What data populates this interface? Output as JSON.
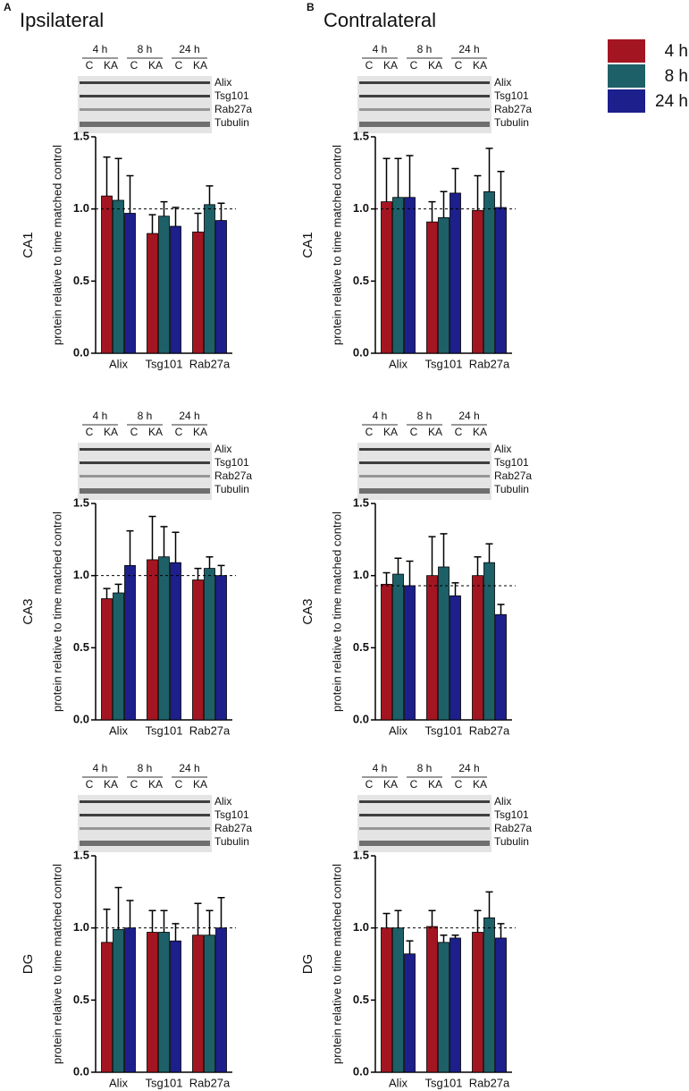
{
  "panels": [
    {
      "label": "A",
      "title": "Ipsilateral"
    },
    {
      "label": "B",
      "title": "Contralateral"
    }
  ],
  "legend": [
    {
      "name": "4 h",
      "color": "#a31621"
    },
    {
      "name": "8 h",
      "color": "#1d6068"
    },
    {
      "name": "24 h",
      "color": "#1c1f8c"
    }
  ],
  "chart_data": [
    {
      "type": "bar",
      "region": "CA1",
      "ylabel": "protein relative to time matched control",
      "categories": [
        "Alix",
        "Tsg101",
        "Rab27a"
      ],
      "ylim": [
        0,
        1.5
      ],
      "yticks": [
        {
          "value": 0,
          "label": "0.0"
        },
        {
          "value": 0.5,
          "label": "0.5"
        },
        {
          "value": 1,
          "label": "1.0"
        },
        {
          "value": 1.5,
          "label": "1.5"
        }
      ],
      "refline": 1,
      "blot": {
        "timepoints": [
          "4 h",
          "8 h",
          "24 h"
        ],
        "lanes": [
          "C",
          "KA"
        ],
        "proteins": [
          "Alix",
          "Tsg101",
          "Rab27a",
          "Tubulin"
        ]
      },
      "series": [
        {
          "values": [
            1.09,
            0.83,
            0.84
          ],
          "errors": [
            0.27,
            0.13,
            0.13
          ]
        },
        {
          "values": [
            1.06,
            0.95,
            1.03
          ],
          "errors": [
            0.29,
            0.1,
            0.13
          ]
        },
        {
          "values": [
            0.97,
            0.88,
            0.92
          ],
          "errors": [
            0.26,
            0.13,
            0.12
          ]
        }
      ]
    },
    {
      "type": "bar",
      "region": "CA3",
      "ylabel": "protein relative to time matched control",
      "categories": [
        "Alix",
        "Tsg101",
        "Rab27a"
      ],
      "ylim": [
        0,
        1.5
      ],
      "yticks": [
        {
          "value": 0,
          "label": "0.0"
        },
        {
          "value": 0.5,
          "label": "0.5"
        },
        {
          "value": 1,
          "label": "1.0"
        },
        {
          "value": 1.5,
          "label": "1.5"
        }
      ],
      "refline": 1,
      "blot": {
        "timepoints": [
          "4 h",
          "8 h",
          "24 h"
        ],
        "lanes": [
          "C",
          "KA"
        ],
        "proteins": [
          "Alix",
          "Tsg101",
          "Rab27a",
          "Tubulin"
        ]
      },
      "series": [
        {
          "values": [
            0.84,
            1.11,
            0.97
          ],
          "errors": [
            0.07,
            0.3,
            0.08
          ]
        },
        {
          "values": [
            0.88,
            1.13,
            1.05
          ],
          "errors": [
            0.06,
            0.21,
            0.08
          ]
        },
        {
          "values": [
            1.07,
            1.09,
            1.0
          ],
          "errors": [
            0.24,
            0.21,
            0.07
          ]
        }
      ]
    },
    {
      "type": "bar",
      "region": "DG",
      "ylabel": "protein relative to time matched control",
      "categories": [
        "Alix",
        "Tsg101",
        "Rab27a"
      ],
      "ylim": [
        0,
        1.5
      ],
      "yticks": [
        {
          "value": 0,
          "label": "0.0"
        },
        {
          "value": 0.5,
          "label": "0.5"
        },
        {
          "value": 1,
          "label": "1.0"
        },
        {
          "value": 1.5,
          "label": "1.5"
        }
      ],
      "refline": 1,
      "blot": {
        "timepoints": [
          "4 h",
          "8 h",
          "24 h"
        ],
        "lanes": [
          "C",
          "KA"
        ],
        "proteins": [
          "Alix",
          "Tsg101",
          "Rab27a",
          "Tubulin"
        ]
      },
      "series": [
        {
          "values": [
            0.9,
            0.97,
            0.95
          ],
          "errors": [
            0.23,
            0.15,
            0.22
          ]
        },
        {
          "values": [
            0.99,
            0.97,
            0.95
          ],
          "errors": [
            0.29,
            0.15,
            0.17
          ]
        },
        {
          "values": [
            1.0,
            0.91,
            1.0
          ],
          "errors": [
            0.19,
            0.12,
            0.21
          ]
        }
      ]
    },
    {
      "type": "bar",
      "region": "CA1",
      "ylabel": "protein relative to time matched control",
      "categories": [
        "Alix",
        "Tsg101",
        "Rab27a"
      ],
      "ylim": [
        0,
        1.5
      ],
      "yticks": [
        {
          "value": 0,
          "label": "0.0"
        },
        {
          "value": 0.5,
          "label": "0.5"
        },
        {
          "value": 1,
          "label": "1.0"
        },
        {
          "value": 1.5,
          "label": "1.5"
        }
      ],
      "refline": 1,
      "blot": {
        "timepoints": [
          "4 h",
          "8 h",
          "24 h"
        ],
        "lanes": [
          "C",
          "KA"
        ],
        "proteins": [
          "Alix",
          "Tsg101",
          "Rab27a",
          "Tubulin"
        ]
      },
      "series": [
        {
          "values": [
            1.05,
            0.91,
            0.99
          ],
          "errors": [
            0.3,
            0.14,
            0.24
          ]
        },
        {
          "values": [
            1.08,
            0.94,
            1.12
          ],
          "errors": [
            0.27,
            0.18,
            0.3
          ]
        },
        {
          "values": [
            1.08,
            1.11,
            1.01
          ],
          "errors": [
            0.29,
            0.17,
            0.25
          ]
        }
      ]
    },
    {
      "type": "bar",
      "region": "CA3",
      "ylabel": "protein relative to time matched control",
      "categories": [
        "Alix",
        "Tsg101",
        "Rab27a"
      ],
      "ylim": [
        0,
        1.5
      ],
      "yticks": [
        {
          "value": 0,
          "label": "0.0"
        },
        {
          "value": 0.5,
          "label": "0.5"
        },
        {
          "value": 1,
          "label": "1.0"
        },
        {
          "value": 1.5,
          "label": "1.5"
        }
      ],
      "refline": 0.93,
      "blot": {
        "timepoints": [
          "4 h",
          "8 h",
          "24 h"
        ],
        "lanes": [
          "C",
          "KA"
        ],
        "proteins": [
          "Alix",
          "Tsg101",
          "Rab27a",
          "Tubulin"
        ]
      },
      "series": [
        {
          "values": [
            0.94,
            1.0,
            1.0
          ],
          "errors": [
            0.08,
            0.27,
            0.13
          ]
        },
        {
          "values": [
            1.01,
            1.06,
            1.09
          ],
          "errors": [
            0.11,
            0.23,
            0.13
          ]
        },
        {
          "values": [
            0.93,
            0.86,
            0.73
          ],
          "errors": [
            0.17,
            0.09,
            0.07
          ]
        }
      ]
    },
    {
      "type": "bar",
      "region": "DG",
      "ylabel": "protein relative to time matched control",
      "categories": [
        "Alix",
        "Tsg101",
        "Rab27a"
      ],
      "ylim": [
        0,
        1.5
      ],
      "yticks": [
        {
          "value": 0,
          "label": "0.0"
        },
        {
          "value": 0.5,
          "label": "0.5"
        },
        {
          "value": 1,
          "label": "1.0"
        },
        {
          "value": 1.5,
          "label": "1.5"
        }
      ],
      "refline": 1,
      "blot": {
        "timepoints": [
          "4 h",
          "8 h",
          "24 h"
        ],
        "lanes": [
          "C",
          "KA"
        ],
        "proteins": [
          "Alix",
          "Tsg101",
          "Rab27a",
          "Tubulin"
        ]
      },
      "series": [
        {
          "values": [
            1.0,
            1.01,
            0.97
          ],
          "errors": [
            0.1,
            0.11,
            0.15
          ]
        },
        {
          "values": [
            1.0,
            0.9,
            1.07
          ],
          "errors": [
            0.12,
            0.05,
            0.18
          ]
        },
        {
          "values": [
            0.82,
            0.93,
            0.93
          ],
          "errors": [
            0.09,
            0.02,
            0.1
          ]
        }
      ]
    }
  ]
}
